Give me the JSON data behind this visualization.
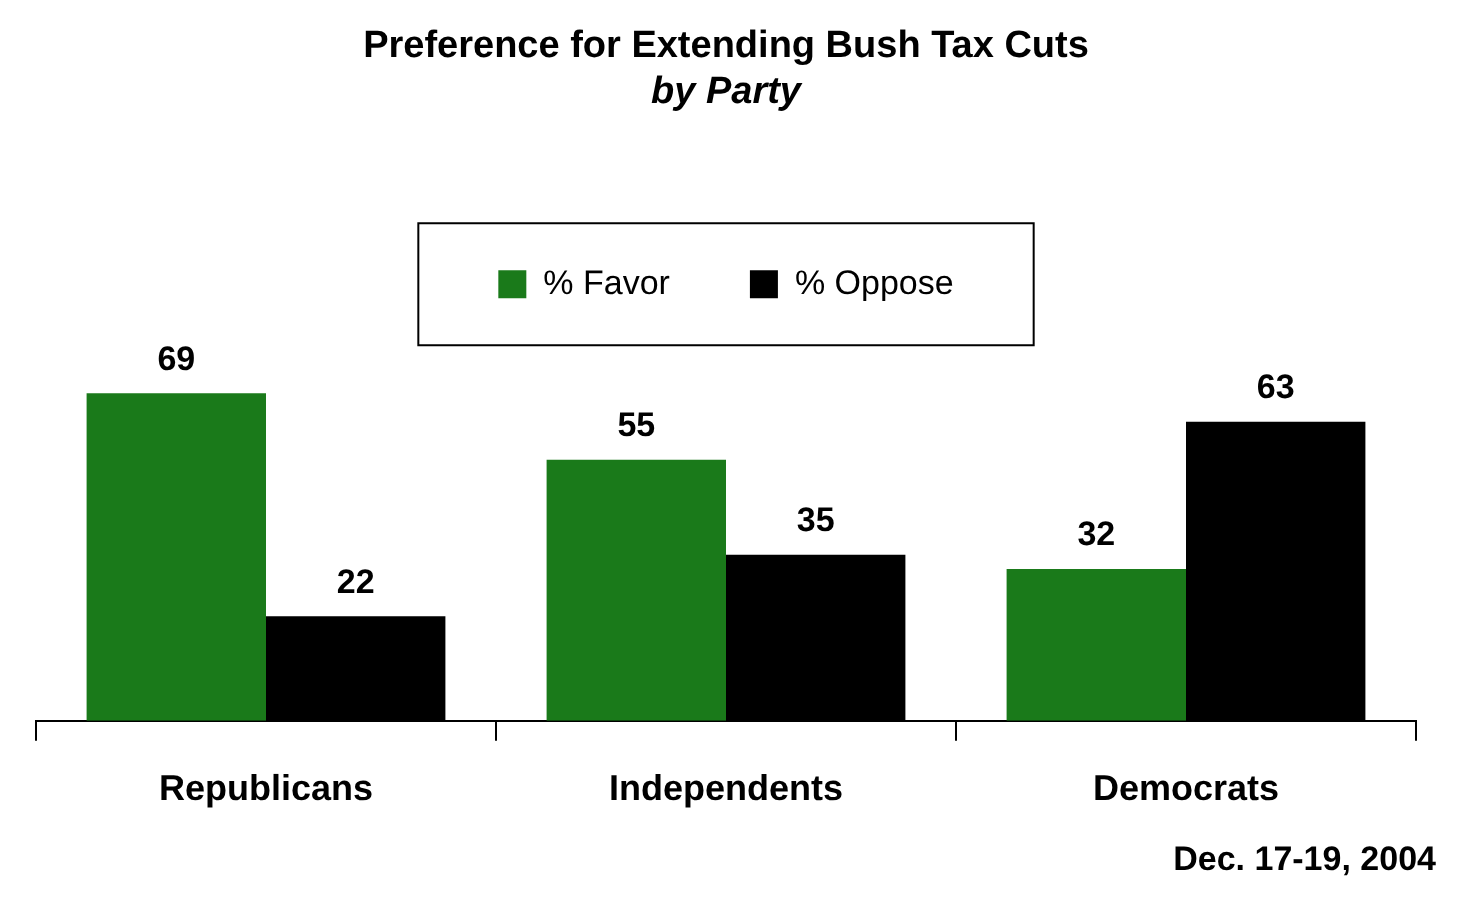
{
  "chart_data": {
    "type": "bar",
    "title": "Preference for Extending Bush Tax Cuts",
    "subtitle": "by Party",
    "categories": [
      "Republicans",
      "Independents",
      "Democrats"
    ],
    "series": [
      {
        "name": "% Favor",
        "color": "#1a7a1a",
        "values": [
          69,
          55,
          32
        ]
      },
      {
        "name": "% Oppose",
        "color": "#000000",
        "values": [
          22,
          35,
          63
        ]
      }
    ],
    "data_labels": true,
    "legend": "top",
    "annotations": [
      "Dec. 17-19, 2004"
    ]
  }
}
